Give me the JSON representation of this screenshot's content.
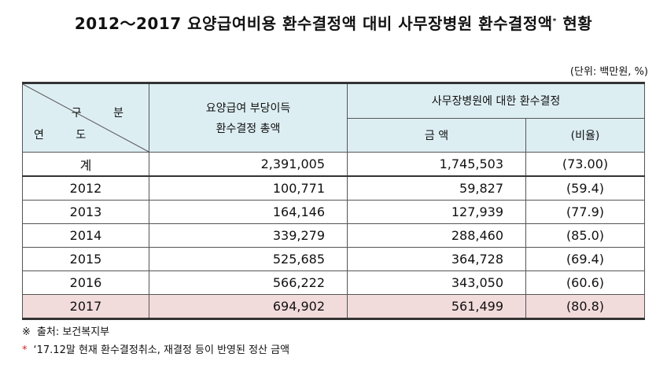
{
  "title": "2012～2017 요양급여비용 환수결정액 대비 사무장병원 환수결정액",
  "title_mark": "*",
  "title_suffix": " 현황",
  "unit": "(단위: 백만원, %)",
  "header": {
    "diag_top": "구 분",
    "diag_bottom": "연 도",
    "col2_line1": "요양급여 부당이득",
    "col2_line2": "환수결정 총액",
    "group": "사무장병원에 대한 환수결정",
    "amount": "금 액",
    "ratio": "(비율)"
  },
  "rows": [
    {
      "year": "계",
      "total": "2,391,005",
      "amount": "1,745,503",
      "ratio": "(73.00)"
    },
    {
      "year": "2012",
      "total": "100,771",
      "amount": "59,827",
      "ratio": "(59.4)"
    },
    {
      "year": "2013",
      "total": "164,146",
      "amount": "127,939",
      "ratio": "(77.9)"
    },
    {
      "year": "2014",
      "total": "339,279",
      "amount": "288,460",
      "ratio": "(85.0)"
    },
    {
      "year": "2015",
      "total": "525,685",
      "amount": "364,728",
      "ratio": "(69.4)"
    },
    {
      "year": "2016",
      "total": "566,222",
      "amount": "343,050",
      "ratio": "(60.6)"
    },
    {
      "year": "2017",
      "total": "694,902",
      "amount": "561,499",
      "ratio": "(80.8)"
    }
  ],
  "notes": {
    "source_mark": "※",
    "source": "출처: 보건복지부",
    "star_mark": "*",
    "footnote": "‘17.12말 현재 환수결정취소, 재결정 등이 반영된 정산 금액"
  }
}
